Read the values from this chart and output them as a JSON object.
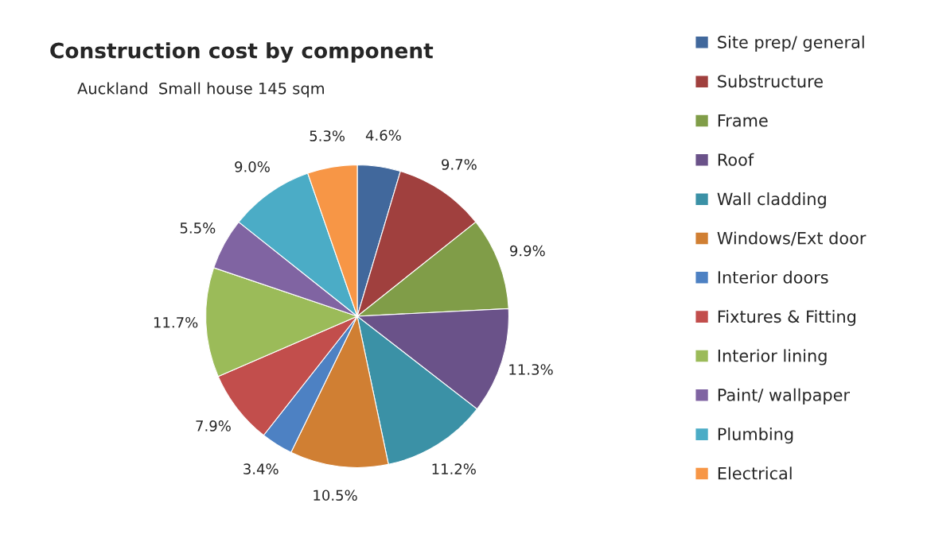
{
  "chart_data": {
    "type": "pie",
    "title": "Construction cost by component",
    "subtitle": "Auckland  Small house 145 sqm",
    "categories": [
      "Site prep/ general",
      "Substructure",
      "Frame",
      "Roof",
      "Wall cladding",
      "Windows/Ext door",
      "Interior doors",
      "Fixtures & Fitting",
      "Interior lining",
      "Paint/ wallpaper",
      "Plumbing",
      "Electrical"
    ],
    "values": [
      4.6,
      9.7,
      9.9,
      11.3,
      11.2,
      10.5,
      3.4,
      7.9,
      11.7,
      5.5,
      9.0,
      5.3
    ],
    "value_labels": [
      "4.6%",
      "9.7%",
      "9.9%",
      "11.3%",
      "11.2%",
      "10.5%",
      "3.4%",
      "7.9%",
      "11.7%",
      "5.5%",
      "9.0%",
      "5.3%"
    ],
    "colors": [
      "#41689c",
      "#a0403e",
      "#809d48",
      "#6a5289",
      "#3b91a6",
      "#d07f33",
      "#4d81c3",
      "#c24e4c",
      "#9bbb59",
      "#8064a2",
      "#4bacc6",
      "#f79646"
    ],
    "legend": "right"
  }
}
